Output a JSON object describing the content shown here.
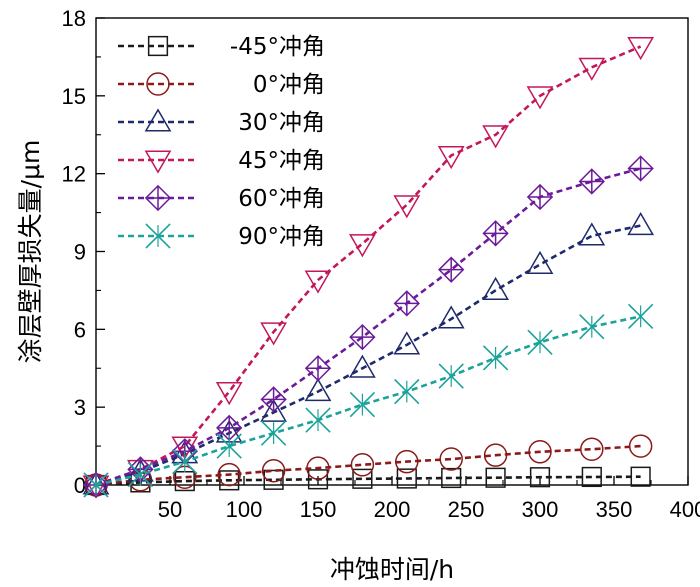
{
  "chart_data": {
    "type": "line",
    "title": "",
    "xlabel": "冲蚀时间/h",
    "ylabel": "涂层壁厚损失量/μm",
    "xlim": [
      0,
      400
    ],
    "ylim": [
      0,
      18
    ],
    "xticks": [
      50,
      100,
      150,
      200,
      250,
      300,
      350,
      400
    ],
    "yticks": [
      0,
      3,
      6,
      9,
      12,
      15,
      18
    ],
    "grid": false,
    "legend_position": "top-left",
    "series": [
      {
        "name": "-45°冲角",
        "marker": "square",
        "color": "#1a1a1a",
        "x": [
          0,
          30,
          60,
          90,
          120,
          150,
          180,
          210,
          240,
          270,
          300,
          335,
          368
        ],
        "y": [
          0,
          0.1,
          0.15,
          0.18,
          0.2,
          0.22,
          0.24,
          0.25,
          0.27,
          0.28,
          0.3,
          0.31,
          0.32
        ]
      },
      {
        "name": "0°冲角",
        "marker": "circle",
        "color": "#8b1a1a",
        "x": [
          0,
          30,
          60,
          90,
          120,
          150,
          180,
          210,
          240,
          270,
          300,
          335,
          368
        ],
        "y": [
          0,
          0.2,
          0.3,
          0.4,
          0.55,
          0.65,
          0.78,
          0.9,
          1.0,
          1.15,
          1.28,
          1.38,
          1.5
        ]
      },
      {
        "name": "30°冲角",
        "marker": "triangle-up",
        "color": "#1f2a6b",
        "x": [
          0,
          30,
          60,
          90,
          120,
          150,
          180,
          210,
          240,
          270,
          300,
          335,
          368
        ],
        "y": [
          0,
          0.5,
          1.2,
          2.0,
          2.8,
          3.6,
          4.5,
          5.4,
          6.4,
          7.5,
          8.5,
          9.6,
          10.0
        ]
      },
      {
        "name": "45°冲角",
        "marker": "triangle-down",
        "color": "#c2185b",
        "x": [
          0,
          30,
          60,
          90,
          120,
          150,
          180,
          210,
          240,
          270,
          300,
          335,
          368
        ],
        "y": [
          0,
          0.6,
          1.5,
          3.6,
          5.9,
          7.9,
          9.3,
          10.8,
          12.7,
          13.5,
          15.0,
          16.1,
          16.9
        ]
      },
      {
        "name": "60°冲角",
        "marker": "diamond-plus",
        "color": "#6a1b9a",
        "x": [
          0,
          30,
          60,
          90,
          120,
          150,
          180,
          210,
          240,
          270,
          300,
          335,
          368
        ],
        "y": [
          0,
          0.6,
          1.3,
          2.2,
          3.3,
          4.5,
          5.7,
          7.0,
          8.3,
          9.7,
          11.1,
          11.7,
          12.2
        ]
      },
      {
        "name": "90°冲角",
        "marker": "star-x",
        "color": "#1aa39a",
        "x": [
          0,
          30,
          60,
          90,
          120,
          150,
          180,
          210,
          240,
          270,
          300,
          335,
          368
        ],
        "y": [
          0,
          0.4,
          0.9,
          1.5,
          2.0,
          2.5,
          3.1,
          3.6,
          4.2,
          4.9,
          5.5,
          6.1,
          6.5
        ]
      }
    ]
  }
}
